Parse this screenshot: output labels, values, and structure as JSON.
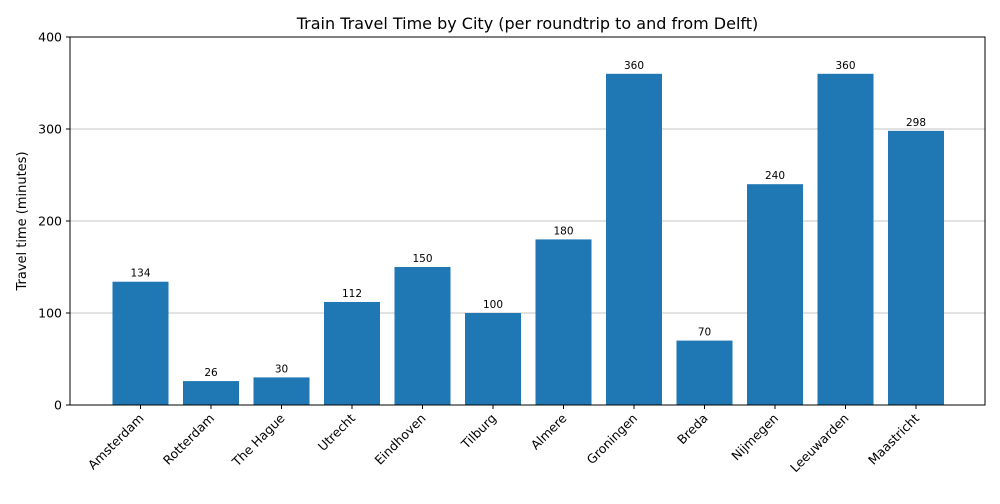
{
  "chart_data": {
    "type": "bar",
    "title": "Train Travel Time by City (per roundtrip to and from Delft)",
    "xlabel": "",
    "ylabel": "Travel time (minutes)",
    "categories": [
      "Amsterdam",
      "Rotterdam",
      "The Hague",
      "Utrecht",
      "Eindhoven",
      "Tilburg",
      "Almere",
      "Groningen",
      "Breda",
      "Nijmegen",
      "Leeuwarden",
      "Maastricht"
    ],
    "values": [
      134,
      26,
      30,
      112,
      150,
      100,
      180,
      360,
      70,
      240,
      360,
      298
    ],
    "ylim": [
      0,
      400
    ],
    "yticks": [
      0,
      100,
      200,
      300,
      400
    ],
    "grid": "horizontal",
    "legend": "none",
    "bar_color": "#1f77b4",
    "grid_color": "#b0b0b0"
  }
}
